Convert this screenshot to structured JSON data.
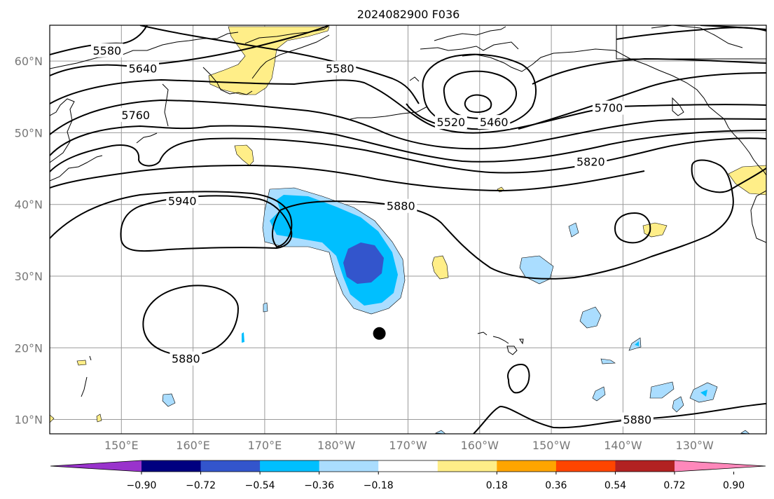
{
  "title": "2024082900 F036",
  "map": {
    "lon_range": [
      140,
      240
    ],
    "lat_range": [
      8,
      65
    ],
    "lat_ticks": [
      {
        "value": 10,
        "label": "10°N"
      },
      {
        "value": 20,
        "label": "20°N"
      },
      {
        "value": 30,
        "label": "30°N"
      },
      {
        "value": 40,
        "label": "40°N"
      },
      {
        "value": 50,
        "label": "50°N"
      },
      {
        "value": 60,
        "label": "60°N"
      }
    ],
    "lon_ticks": [
      {
        "value": 150,
        "label": "150°E"
      },
      {
        "value": 160,
        "label": "160°E"
      },
      {
        "value": 170,
        "label": "170°E"
      },
      {
        "value": 180,
        "label": "180°W"
      },
      {
        "value": 190,
        "label": "170°W"
      },
      {
        "value": 200,
        "label": "160°W"
      },
      {
        "value": 210,
        "label": "150°W"
      },
      {
        "value": 220,
        "label": "140°W"
      },
      {
        "value": 230,
        "label": "130°W"
      }
    ],
    "contour_labels": [
      {
        "text": "5580",
        "lon": 148,
        "lat": 61.5
      },
      {
        "text": "5640",
        "lon": 153,
        "lat": 59.0
      },
      {
        "text": "5580",
        "lon": 180.5,
        "lat": 59.0
      },
      {
        "text": "5760",
        "lon": 152,
        "lat": 52.5
      },
      {
        "text": "5520",
        "lon": 196,
        "lat": 51.5
      },
      {
        "text": "5460",
        "lon": 202,
        "lat": 51.5
      },
      {
        "text": "5700",
        "lon": 218,
        "lat": 53.5
      },
      {
        "text": "5820",
        "lon": 215.5,
        "lat": 46.0
      },
      {
        "text": "5940",
        "lon": 158.5,
        "lat": 40.5
      },
      {
        "text": "5880",
        "lon": 189,
        "lat": 39.8
      },
      {
        "text": "5880",
        "lon": 159,
        "lat": 18.5
      },
      {
        "text": "5880",
        "lon": 222,
        "lat": 10.0
      }
    ],
    "marker": {
      "lon": 186,
      "lat": 22,
      "color": "#000000"
    },
    "colors": {
      "purple": "#9933cc",
      "navy": "#000080",
      "royal_blue": "#3355cc",
      "deep_sky_blue": "#00bfff",
      "light_blue": "#aaddff",
      "white": "#ffffff",
      "pale_yellow": "#ffee88",
      "orange": "#ffa500",
      "orange_red": "#ff4500",
      "firebrick": "#b22222",
      "pink": "#ff88bb"
    }
  },
  "colorbar": {
    "bins": [
      {
        "color": "#9933cc"
      },
      {
        "color": "#000080"
      },
      {
        "color": "#3355cc"
      },
      {
        "color": "#00bfff"
      },
      {
        "color": "#aaddff"
      },
      {
        "color": "#ffffff"
      },
      {
        "color": "#ffee88"
      },
      {
        "color": "#ffa500"
      },
      {
        "color": "#ff4500"
      },
      {
        "color": "#b22222"
      },
      {
        "color": "#ff88bb"
      }
    ],
    "ticks": [
      "−0.90",
      "−0.72",
      "−0.54",
      "−0.36",
      "−0.18",
      "0.18",
      "0.36",
      "0.54",
      "0.72",
      "0.90"
    ]
  }
}
